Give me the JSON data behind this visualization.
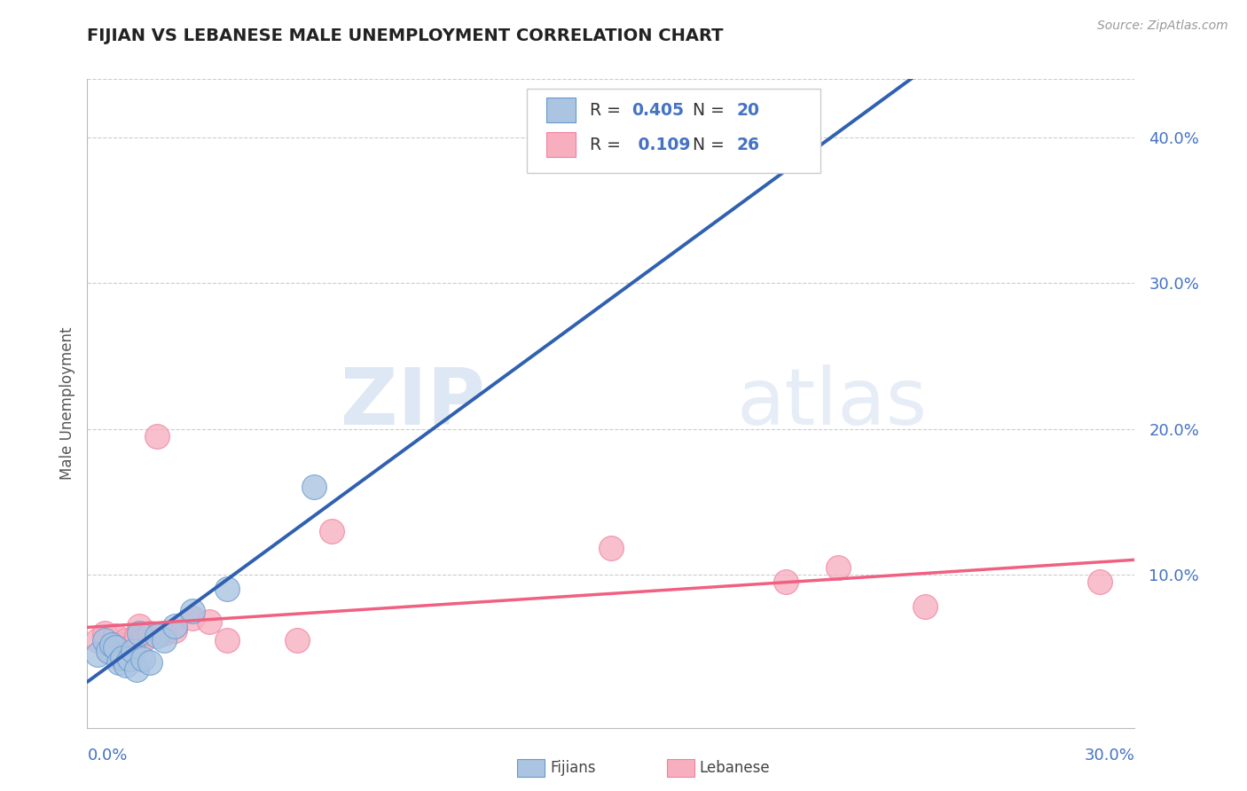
{
  "title": "FIJIAN VS LEBANESE MALE UNEMPLOYMENT CORRELATION CHART",
  "source": "Source: ZipAtlas.com",
  "ylabel": "Male Unemployment",
  "xlim": [
    0.0,
    0.3
  ],
  "ylim": [
    -0.005,
    0.44
  ],
  "yticks": [
    0.1,
    0.2,
    0.3,
    0.4
  ],
  "ytick_labels": [
    "10.0%",
    "20.0%",
    "30.0%",
    "40.0%"
  ],
  "fijian_color": "#aac4e2",
  "lebanese_color": "#f7afc0",
  "fijian_edge_color": "#6699cc",
  "lebanese_edge_color": "#f080a0",
  "fijian_line_color": "#3060b0",
  "lebanese_line_color": "#f06080",
  "fijian_R": 0.405,
  "fijian_N": 20,
  "lebanese_R": 0.109,
  "lebanese_N": 26,
  "watermark_zip": "ZIP",
  "watermark_atlas": "atlas",
  "background_color": "#ffffff",
  "fijian_x": [
    0.003,
    0.005,
    0.006,
    0.007,
    0.008,
    0.009,
    0.01,
    0.011,
    0.012,
    0.013,
    0.014,
    0.015,
    0.016,
    0.018,
    0.02,
    0.022,
    0.025,
    0.03,
    0.04,
    0.065
  ],
  "fijian_y": [
    0.045,
    0.055,
    0.048,
    0.052,
    0.05,
    0.04,
    0.043,
    0.038,
    0.042,
    0.048,
    0.035,
    0.06,
    0.042,
    0.04,
    0.058,
    0.055,
    0.065,
    0.075,
    0.09,
    0.16
  ],
  "lebanese_x": [
    0.003,
    0.005,
    0.006,
    0.007,
    0.008,
    0.009,
    0.01,
    0.011,
    0.012,
    0.014,
    0.015,
    0.016,
    0.018,
    0.02,
    0.022,
    0.025,
    0.03,
    0.035,
    0.04,
    0.06,
    0.07,
    0.15,
    0.2,
    0.215,
    0.24,
    0.29
  ],
  "lebanese_y": [
    0.055,
    0.06,
    0.048,
    0.052,
    0.058,
    0.043,
    0.052,
    0.055,
    0.05,
    0.058,
    0.065,
    0.055,
    0.06,
    0.195,
    0.06,
    0.062,
    0.07,
    0.068,
    0.055,
    0.055,
    0.13,
    0.118,
    0.095,
    0.105,
    0.078,
    0.095
  ]
}
